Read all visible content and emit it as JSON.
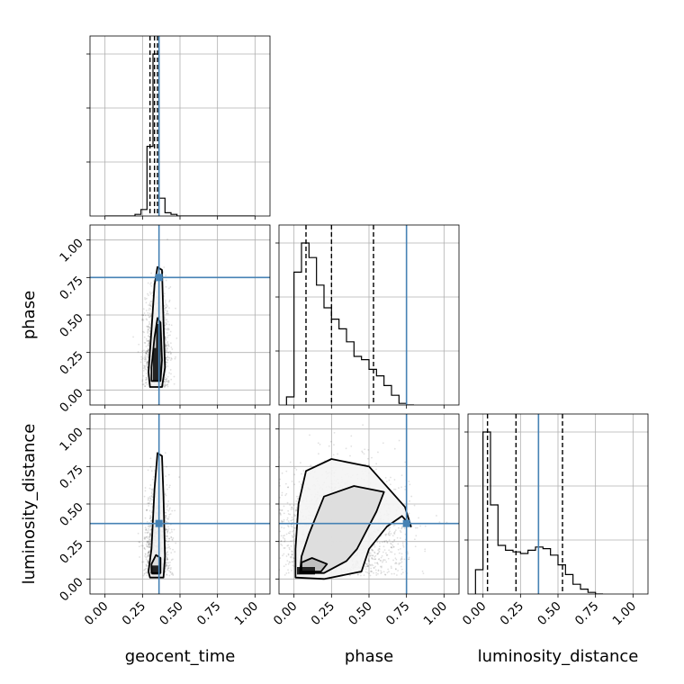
{
  "chart_data": {
    "type": "corner",
    "parameters": [
      "geocent_time",
      "phase",
      "luminosity_distance"
    ],
    "axis_range": [
      -0.1,
      1.1
    ],
    "tick_values": [
      0.0,
      0.25,
      0.5,
      0.75,
      1.0
    ],
    "tick_labels": [
      "0.00",
      "0.25",
      "0.50",
      "0.75",
      "1.00"
    ],
    "grid": true,
    "truth_color": "#4682b4",
    "truths": {
      "geocent_time": 0.36,
      "phase": 0.75,
      "luminosity_distance": 0.37
    },
    "quantiles": {
      "geocent_time": [
        0.3,
        0.33,
        0.35
      ],
      "phase": [
        0.08,
        0.25,
        0.53
      ],
      "luminosity_distance": [
        0.03,
        0.22,
        0.53
      ]
    },
    "histograms": {
      "geocent_time": {
        "bin_start": 0.0,
        "bin_width": 0.04,
        "counts": [
          0,
          0,
          0,
          0,
          0,
          0.01,
          0.04,
          0.43,
          1.0,
          0.11,
          0.02,
          0.01,
          0,
          0,
          0,
          0,
          0,
          0,
          0,
          0,
          0,
          0,
          0,
          0,
          0
        ]
      },
      "phase": {
        "bin_start": -0.05,
        "bin_width": 0.05,
        "counts": [
          0.05,
          0.82,
          1.0,
          0.91,
          0.74,
          0.6,
          0.53,
          0.47,
          0.39,
          0.3,
          0.28,
          0.22,
          0.18,
          0.12,
          0.06,
          0.01,
          0
        ]
      },
      "luminosity_distance": {
        "bin_start": -0.05,
        "bin_width": 0.05,
        "counts": [
          0.15,
          1.0,
          0.55,
          0.3,
          0.27,
          0.26,
          0.25,
          0.27,
          0.29,
          0.28,
          0.24,
          0.18,
          0.12,
          0.06,
          0.03,
          0.01,
          0
        ]
      }
    },
    "density_panels": [
      {
        "x": "geocent_time",
        "y": "phase",
        "scatter": {
          "cx": 0.35,
          "cy": 0.25,
          "sx": 0.04,
          "sy": 0.22,
          "n": 1400
        },
        "contours": [
          [
            [
              0.3,
              0.02
            ],
            [
              0.38,
              0.02
            ],
            [
              0.4,
              0.15
            ],
            [
              0.39,
              0.45
            ],
            [
              0.38,
              0.8
            ],
            [
              0.35,
              0.82
            ],
            [
              0.33,
              0.7
            ],
            [
              0.31,
              0.4
            ],
            [
              0.29,
              0.12
            ]
          ],
          [
            [
              0.31,
              0.06
            ],
            [
              0.37,
              0.06
            ],
            [
              0.38,
              0.2
            ],
            [
              0.37,
              0.45
            ],
            [
              0.35,
              0.48
            ],
            [
              0.33,
              0.35
            ],
            [
              0.31,
              0.15
            ]
          ]
        ],
        "dense": [
          [
            0.32,
            0.06,
            0.05,
            0.22
          ],
          [
            0.34,
            0.1,
            0.03,
            0.34
          ]
        ]
      },
      {
        "x": "geocent_time",
        "y": "luminosity_distance",
        "scatter": {
          "cx": 0.35,
          "cy": 0.2,
          "sx": 0.04,
          "sy": 0.22,
          "n": 1400
        },
        "contours": [
          [
            [
              0.3,
              0.01
            ],
            [
              0.39,
              0.01
            ],
            [
              0.4,
              0.15
            ],
            [
              0.39,
              0.55
            ],
            [
              0.38,
              0.82
            ],
            [
              0.35,
              0.84
            ],
            [
              0.33,
              0.6
            ],
            [
              0.31,
              0.2
            ],
            [
              0.29,
              0.05
            ]
          ],
          [
            [
              0.31,
              0.04
            ],
            [
              0.37,
              0.04
            ],
            [
              0.37,
              0.14
            ],
            [
              0.34,
              0.16
            ],
            [
              0.31,
              0.1
            ]
          ]
        ],
        "dense": [
          [
            0.31,
            0.03,
            0.06,
            0.06
          ]
        ]
      },
      {
        "x": "phase",
        "y": "luminosity_distance",
        "scatter": {
          "cx": 0.3,
          "cy": 0.3,
          "sx": 0.22,
          "sy": 0.22,
          "n": 2200
        },
        "contours": [
          [
            [
              0.01,
              0.01
            ],
            [
              0.2,
              0.0
            ],
            [
              0.45,
              0.05
            ],
            [
              0.5,
              0.2
            ],
            [
              0.62,
              0.35
            ],
            [
              0.72,
              0.42
            ],
            [
              0.78,
              0.35
            ],
            [
              0.74,
              0.48
            ],
            [
              0.5,
              0.75
            ],
            [
              0.25,
              0.8
            ],
            [
              0.08,
              0.72
            ],
            [
              0.03,
              0.5
            ],
            [
              0.01,
              0.2
            ]
          ],
          [
            [
              0.04,
              0.04
            ],
            [
              0.2,
              0.04
            ],
            [
              0.35,
              0.12
            ],
            [
              0.42,
              0.2
            ],
            [
              0.55,
              0.45
            ],
            [
              0.6,
              0.58
            ],
            [
              0.4,
              0.62
            ],
            [
              0.2,
              0.55
            ],
            [
              0.1,
              0.3
            ],
            [
              0.05,
              0.15
            ]
          ],
          [
            [
              0.05,
              0.05
            ],
            [
              0.18,
              0.05
            ],
            [
              0.22,
              0.1
            ],
            [
              0.12,
              0.14
            ],
            [
              0.05,
              0.11
            ]
          ]
        ],
        "dense": [
          [
            0.02,
            0.03,
            0.12,
            0.05
          ]
        ]
      }
    ]
  }
}
